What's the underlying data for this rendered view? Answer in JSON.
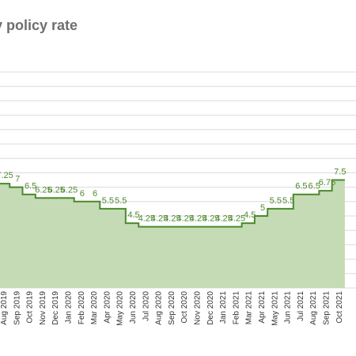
{
  "chart_data": {
    "type": "area",
    "title": "ry policy rate",
    "xlabel": "",
    "ylabel": "",
    "ylim": [
      0,
      15
    ],
    "grid": true,
    "colors": {
      "line": "#4a8a2a",
      "fill": "#c4dbb5",
      "label": "#4f8a2f",
      "grid": "#dcdcdc"
    },
    "categories": [
      "Aug 2019",
      "Sep 2019",
      "Oct 2019",
      "Nov 2019",
      "Dec 2019",
      "Jan 2020",
      "Feb 2020",
      "Mar 2020",
      "Apr 2020",
      "May 2020",
      "Jun 2020",
      "Jul 2020",
      "Aug 2020",
      "Sep 2020",
      "Oct 2020",
      "Nov 2020",
      "Dec 2020",
      "Jan 2021",
      "Feb 2021",
      "Mar 2021",
      "Apr 2021",
      "May 2021",
      "Jun 2021",
      "Jul 2021",
      "Aug 2021",
      "Sep 2021",
      "Oct 2021"
    ],
    "values": [
      7.25,
      7,
      6.5,
      6.25,
      6.25,
      6.25,
      6,
      6,
      5.5,
      5.5,
      4.5,
      4.25,
      4.25,
      4.25,
      4.25,
      4.25,
      4.25,
      4.25,
      4.25,
      4.5,
      5,
      5.5,
      5.5,
      6.5,
      6.5,
      6.75,
      7.5
    ],
    "data_labels": [
      "7.25",
      "7",
      "6.5",
      "6.25",
      "6.25",
      "6.25",
      "6",
      "6",
      "5.5",
      "5.5",
      "4.5",
      "4.25",
      "4.25",
      "4.25",
      "4.25",
      "4.25",
      "4.25",
      "4.25",
      "4.25",
      "4.5",
      "5",
      "5.5",
      "5.5",
      "6.5",
      "6.5",
      "6.75",
      "7.5"
    ]
  }
}
